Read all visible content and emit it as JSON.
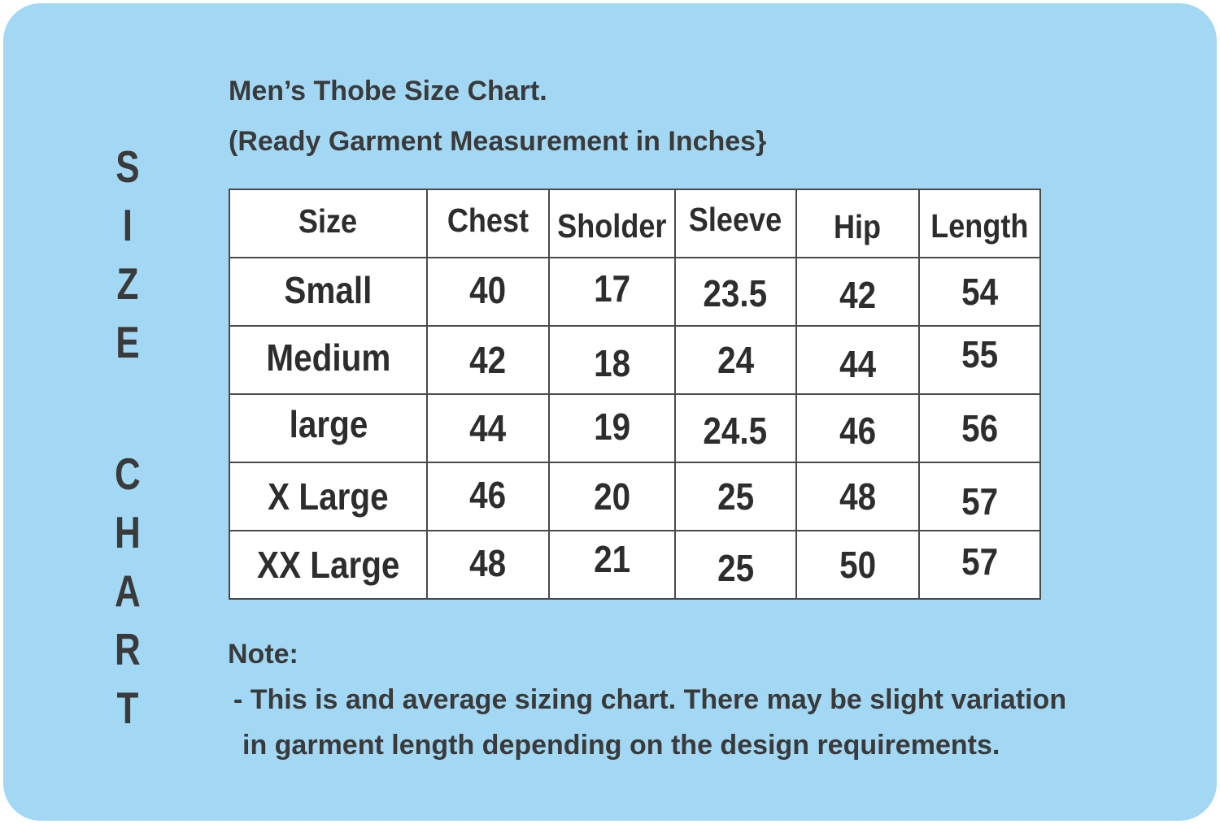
{
  "card": {
    "background_color": "#A3D8F4",
    "text_color": "#3A3A3A",
    "side_label": {
      "word1": "SIZE",
      "word2": "CHART"
    },
    "title_line1": "Men’s Thobe Size Chart.",
    "title_line2": "(Ready Garment Measurement in Inches}",
    "note": {
      "heading": "Note:",
      "line1": "- This is and average sizing chart. There may be slight variation",
      "line2": "in garment length depending on the design requirements."
    }
  },
  "table_style": {
    "border_color": "#4A4A4A",
    "cell_background": "#FFFFFF",
    "cell_text_color": "#2D2D2D"
  },
  "chart_data": {
    "type": "table",
    "title": "Men’s Thobe Size Chart.",
    "subtitle": "(Ready Garment Measurement in Inches}",
    "units": "Inches",
    "columns": [
      "Size",
      "Chest",
      "Sholder",
      "Sleeve",
      "Hip",
      "Length"
    ],
    "rows": [
      [
        "Small",
        "40",
        "17",
        "23.5",
        "42",
        "54"
      ],
      [
        "Medium",
        "42",
        "18",
        "24",
        "44",
        "55"
      ],
      [
        "large",
        "44",
        "19",
        "24.5",
        "46",
        "56"
      ],
      [
        "X Large",
        "46",
        "20",
        "25",
        "48",
        "57"
      ],
      [
        "XX Large",
        "48",
        "21",
        "25",
        "50",
        "57"
      ]
    ]
  }
}
